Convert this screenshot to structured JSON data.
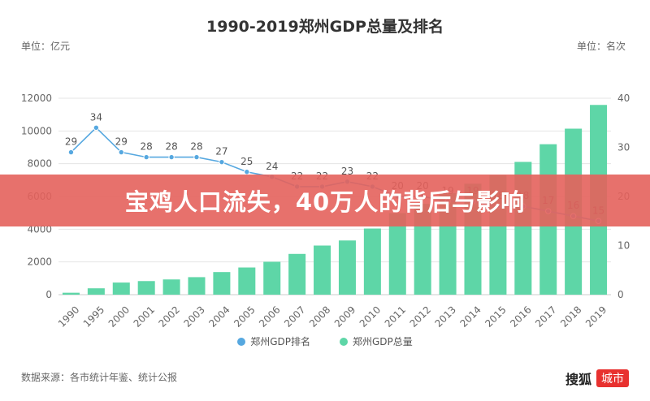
{
  "title": "1990-2019郑州GDP总量及排名",
  "unit_left": "单位：亿元",
  "unit_right": "单位：名次",
  "source": "数据来源：各市统计年鉴、统计公报",
  "brand": {
    "main": "搜狐",
    "badge": "城市"
  },
  "banner": "宝鸡人口流失，40万人的背后与影响",
  "colors": {
    "bar": "#5ed6a7",
    "line": "#56a8e0",
    "grid": "#e5e5e5",
    "axis_text": "#666666"
  },
  "chart_data": {
    "type": "bar+line",
    "title": "1990-2019郑州GDP总量及排名",
    "categories": [
      "1990",
      "1995",
      "2000",
      "2001",
      "2002",
      "2003",
      "2004",
      "2005",
      "2006",
      "2007",
      "2008",
      "2009",
      "2010",
      "2011",
      "2012",
      "2013",
      "2014",
      "2015",
      "2016",
      "2017",
      "2018",
      "2019"
    ],
    "series": [
      {
        "name": "郑州GDP排名",
        "type": "line",
        "axis": "right",
        "values": [
          29,
          34,
          29,
          28,
          28,
          28,
          27,
          25,
          24,
          22,
          22,
          23,
          22,
          20,
          20,
          19,
          19,
          18,
          18,
          17,
          16,
          15
        ]
      },
      {
        "name": "郑州GDP总量",
        "type": "bar",
        "axis": "left",
        "values": [
          117,
          388,
          740,
          830,
          930,
          1070,
          1380,
          1660,
          2010,
          2490,
          3000,
          3310,
          4040,
          4980,
          5550,
          6200,
          6780,
          7300,
          8110,
          9190,
          10140,
          11590
        ]
      }
    ],
    "y_left": {
      "min": 0,
      "max": 12000,
      "ticks": [
        0,
        2000,
        4000,
        6000,
        8000,
        10000,
        12000
      ]
    },
    "y_right": {
      "min": 0,
      "max": 40,
      "ticks": [
        0,
        10,
        20,
        30,
        40
      ]
    },
    "legend": [
      "郑州GDP排名",
      "郑州GDP总量"
    ],
    "legend_position": "bottom",
    "grid": true
  }
}
